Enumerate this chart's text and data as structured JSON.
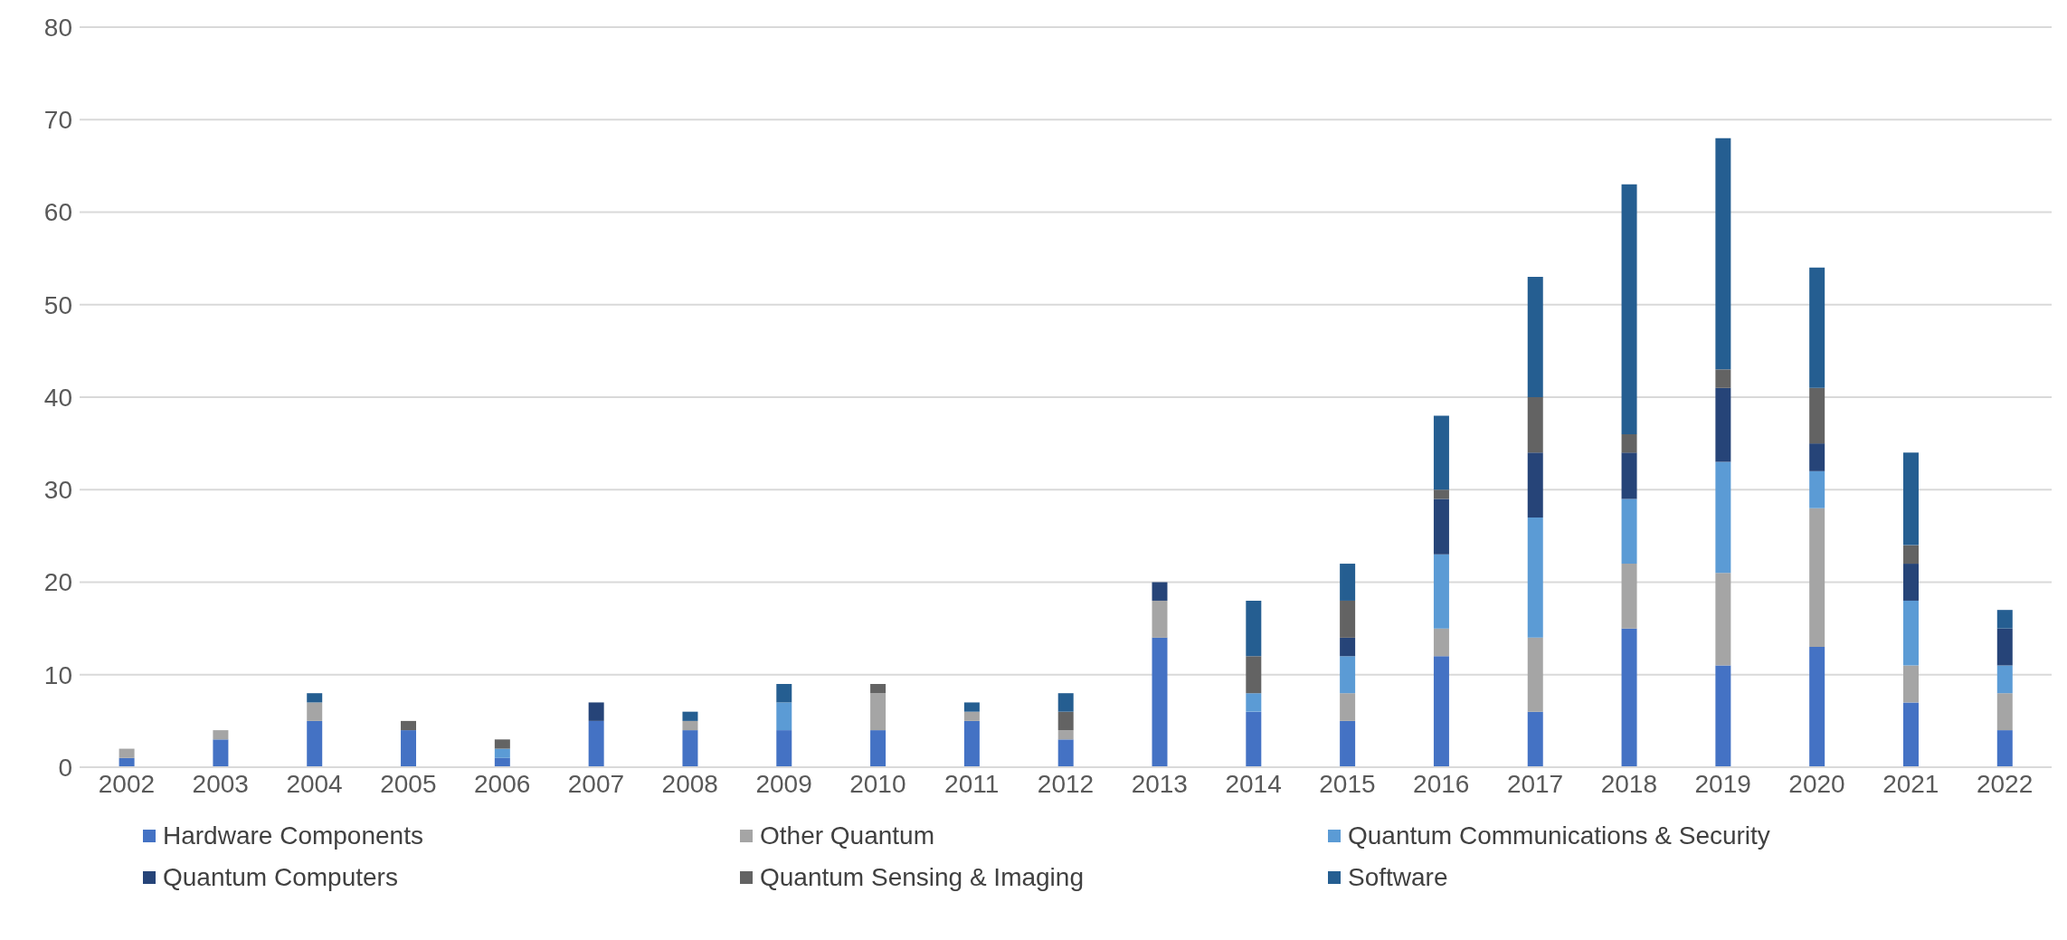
{
  "chart_data": {
    "type": "bar",
    "stacked": true,
    "categories": [
      "2002",
      "2003",
      "2004",
      "2005",
      "2006",
      "2007",
      "2008",
      "2009",
      "2010",
      "2011",
      "2012",
      "2013",
      "2014",
      "2015",
      "2016",
      "2017",
      "2018",
      "2019",
      "2020",
      "2021",
      "2022"
    ],
    "series": [
      {
        "name": "Hardware Components",
        "color": "#4472c4",
        "values": [
          1,
          3,
          5,
          4,
          1,
          5,
          4,
          4,
          4,
          5,
          3,
          14,
          6,
          5,
          12,
          6,
          15,
          11,
          13,
          7,
          4
        ]
      },
      {
        "name": "Other Quantum",
        "color": "#a5a5a5",
        "values": [
          1,
          1,
          2,
          0,
          0,
          0,
          1,
          0,
          4,
          1,
          1,
          4,
          0,
          3,
          3,
          8,
          7,
          10,
          15,
          4,
          4
        ]
      },
      {
        "name": "Quantum Communications & Security",
        "color": "#5b9bd5",
        "values": [
          0,
          0,
          0,
          0,
          1,
          0,
          0,
          3,
          0,
          0,
          0,
          0,
          2,
          4,
          8,
          13,
          7,
          12,
          4,
          7,
          3
        ]
      },
      {
        "name": "Quantum Computers",
        "color": "#264478",
        "values": [
          0,
          0,
          0,
          0,
          0,
          2,
          0,
          0,
          0,
          0,
          0,
          2,
          0,
          2,
          6,
          7,
          5,
          8,
          3,
          4,
          4
        ]
      },
      {
        "name": "Quantum Sensing & Imaging",
        "color": "#636363",
        "values": [
          0,
          0,
          0,
          1,
          1,
          0,
          0,
          0,
          1,
          0,
          2,
          0,
          4,
          4,
          1,
          6,
          2,
          2,
          6,
          2,
          0
        ]
      },
      {
        "name": "Software",
        "color": "#255e91",
        "values": [
          0,
          0,
          1,
          0,
          0,
          0,
          1,
          2,
          0,
          1,
          2,
          0,
          6,
          4,
          8,
          13,
          27,
          25,
          13,
          10,
          2
        ]
      }
    ],
    "ylim": [
      0,
      80
    ],
    "yticks": [
      0,
      10,
      20,
      30,
      40,
      50,
      60,
      70,
      80
    ],
    "grid": "y",
    "legend": "bottom"
  }
}
